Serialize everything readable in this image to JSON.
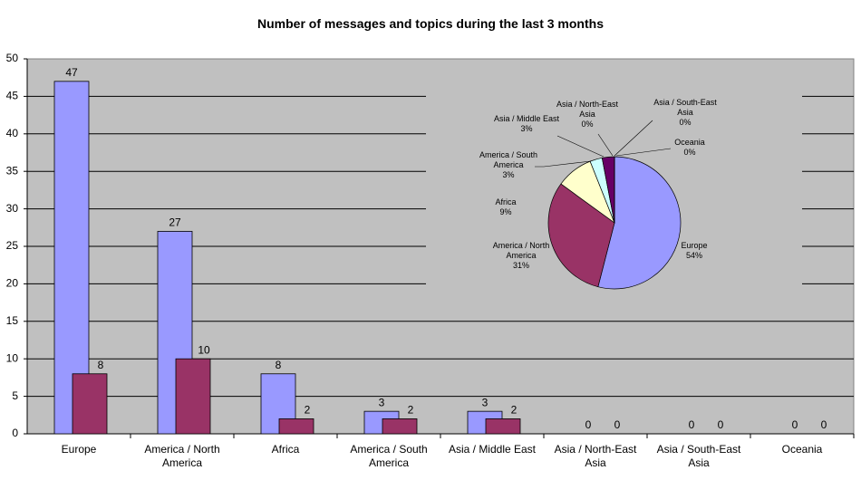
{
  "chart_data": [
    {
      "type": "bar",
      "title": "Number of messages and topics during the last 3 months",
      "categories": [
        "Europe",
        "America / North America",
        "Africa",
        "America / South America",
        "Asia / Middle East",
        "Asia / North-East Asia",
        "Asia / South-East Asia",
        "Oceania"
      ],
      "series": [
        {
          "color": "#9999ff",
          "values": [
            47,
            27,
            8,
            3,
            3,
            0,
            0,
            0
          ]
        },
        {
          "color": "#993366",
          "values": [
            8,
            10,
            2,
            2,
            2,
            0,
            0,
            0
          ]
        }
      ],
      "ylim": [
        0,
        50
      ],
      "yticks": [
        0,
        5,
        10,
        15,
        20,
        25,
        30,
        35,
        40,
        45,
        50
      ],
      "grid": true
    },
    {
      "type": "pie",
      "categories": [
        "Europe",
        "America / North America",
        "Africa",
        "America / South America",
        "Asia / Middle East",
        "Asia / North-East Asia",
        "Asia / South-East Asia",
        "Oceania"
      ],
      "values": [
        54,
        31,
        9,
        3,
        3,
        0,
        0,
        0
      ],
      "value_labels": [
        "54%",
        "31%",
        "9%",
        "3%",
        "3%",
        "0%",
        "0%",
        "0%"
      ],
      "colors": [
        "#9999ff",
        "#993366",
        "#ffffcc",
        "#ccffff",
        "#660066",
        "#ff8080",
        "#0066cc",
        "#ccccff"
      ]
    }
  ]
}
